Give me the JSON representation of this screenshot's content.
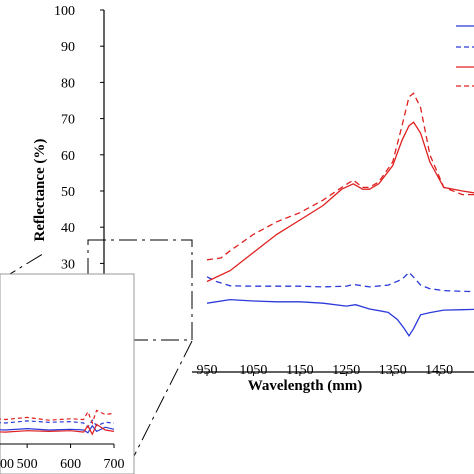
{
  "chart_data": {
    "type": "line",
    "xlabel": "Wavelength (mm)",
    "ylabel": "Reflectance (%)",
    "main": {
      "xlim": [
        950,
        1525
      ],
      "ylim": [
        0,
        100
      ],
      "x_ticks": [
        950,
        1050,
        1150,
        1250,
        1350,
        1450
      ],
      "y_ticks": [
        30,
        40,
        50,
        60,
        70,
        80,
        90,
        100
      ],
      "series": [
        {
          "color": "#2b3ad9",
          "dash": "solid",
          "x": [
            950,
            1000,
            1050,
            1100,
            1150,
            1200,
            1250,
            1270,
            1300,
            1340,
            1360,
            1375,
            1385,
            1395,
            1410,
            1430,
            1460,
            1500,
            1525
          ],
          "y": [
            19,
            20,
            19.6,
            19.4,
            19.4,
            19,
            18.2,
            18.6,
            17.4,
            16.5,
            14.5,
            12,
            10,
            12,
            15.8,
            16.4,
            17.1,
            17.2,
            17.3
          ]
        },
        {
          "color": "#2b3ad9",
          "dash": "dashed",
          "x": [
            950,
            970,
            1000,
            1050,
            1100,
            1150,
            1200,
            1250,
            1265,
            1300,
            1340,
            1370,
            1385,
            1395,
            1410,
            1430,
            1460,
            1500,
            1525
          ],
          "y": [
            26.3,
            25,
            23.8,
            23.7,
            23.7,
            23.7,
            23.5,
            23.7,
            24.2,
            23.5,
            24,
            25.6,
            27.5,
            26.2,
            24,
            23,
            22.5,
            22.3,
            22.2
          ]
        },
        {
          "color": "#e02020",
          "dash": "solid",
          "x": [
            950,
            1000,
            1050,
            1100,
            1150,
            1200,
            1240,
            1265,
            1285,
            1300,
            1320,
            1350,
            1370,
            1385,
            1395,
            1410,
            1430,
            1460,
            1500,
            1525
          ],
          "y": [
            25,
            28,
            33,
            38,
            42,
            46,
            50.5,
            52,
            50.5,
            50.5,
            52,
            57,
            64,
            68,
            69,
            66,
            58,
            51,
            50,
            49.5
          ]
        },
        {
          "color": "#e02020",
          "dash": "dashed",
          "x": [
            950,
            980,
            1000,
            1050,
            1100,
            1150,
            1200,
            1240,
            1265,
            1285,
            1300,
            1320,
            1350,
            1370,
            1385,
            1395,
            1410,
            1430,
            1460,
            1500,
            1525
          ],
          "y": [
            31,
            31.5,
            33.5,
            38,
            41.5,
            44,
            47.5,
            51,
            53,
            51,
            51,
            52.5,
            58,
            68,
            76,
            77,
            73,
            60,
            51,
            49,
            49
          ]
        }
      ]
    },
    "inset": {
      "xlim": [
        350,
        700
      ],
      "x_ticks": [
        500,
        600,
        700
      ],
      "x_tick_labels": [
        "500",
        "600",
        "700"
      ],
      "partial_left_tick_label": "00",
      "series": [
        {
          "color": "#2b3ad9",
          "dash": "solid",
          "x": [
            350,
            400,
            450,
            500,
            550,
            600,
            630,
            640,
            650,
            660,
            680,
            700
          ],
          "y": [
            2.0,
            2.1,
            2.0,
            2.2,
            2.0,
            2.1,
            2.0,
            1.6,
            2.6,
            1.8,
            2.4,
            2.1
          ]
        },
        {
          "color": "#2b3ad9",
          "dash": "dashed",
          "x": [
            350,
            400,
            450,
            500,
            550,
            600,
            630,
            640,
            650,
            660,
            680,
            700
          ],
          "y": [
            3.0,
            3.2,
            3.0,
            3.3,
            3.1,
            3.2,
            3.0,
            2.4,
            3.4,
            2.6,
            3.1,
            3.0
          ]
        },
        {
          "color": "#e02020",
          "dash": "solid",
          "x": [
            350,
            400,
            450,
            500,
            550,
            600,
            630,
            640,
            650,
            660,
            680,
            700
          ],
          "y": [
            1.6,
            1.8,
            1.7,
            1.9,
            1.8,
            1.9,
            1.7,
            2.6,
            1.4,
            2.8,
            2.0,
            1.8
          ]
        },
        {
          "color": "#e02020",
          "dash": "dashed",
          "x": [
            350,
            400,
            450,
            500,
            550,
            600,
            630,
            640,
            650,
            660,
            680,
            700
          ],
          "y": [
            3.6,
            3.7,
            3.5,
            3.8,
            3.4,
            3.6,
            3.5,
            4.6,
            3.0,
            4.8,
            4.2,
            4.4
          ]
        }
      ]
    }
  }
}
